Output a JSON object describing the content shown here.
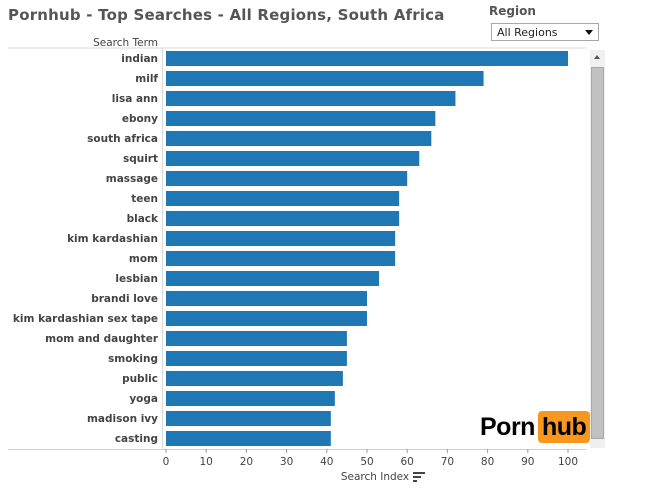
{
  "header": {
    "title": "Pornhub - Top Searches - All Regions, South Africa"
  },
  "filter": {
    "label": "Region",
    "selected": "All Regions"
  },
  "logo": {
    "part1": "Porn",
    "part2": "hub"
  },
  "colors": {
    "bar": "#1f77b4",
    "logo_accent": "#f7971d"
  },
  "icons": {
    "sort": "sort-icon",
    "dropdown": "chevron-down-icon",
    "scroll_up": "arrow-up-icon"
  },
  "chart_data": {
    "type": "bar",
    "orientation": "horizontal",
    "ylabel": "Search Term",
    "xlabel": "Search Index",
    "xlim": [
      0,
      108
    ],
    "xticks": [
      0,
      10,
      20,
      30,
      40,
      50,
      60,
      70,
      80,
      90,
      100
    ],
    "grid": false,
    "categories": [
      "indian",
      "milf",
      "lisa ann",
      "ebony",
      "south africa",
      "squirt",
      "massage",
      "teen",
      "black",
      "kim kardashian",
      "mom",
      "lesbian",
      "brandi love",
      "kim kardashian sex tape",
      "mom and daughter",
      "smoking",
      "public",
      "yoga",
      "madison ivy",
      "casting"
    ],
    "values": [
      100,
      79,
      72,
      67,
      66,
      63,
      60,
      58,
      58,
      57,
      57,
      53,
      50,
      50,
      45,
      45,
      44,
      42,
      41,
      41
    ]
  }
}
